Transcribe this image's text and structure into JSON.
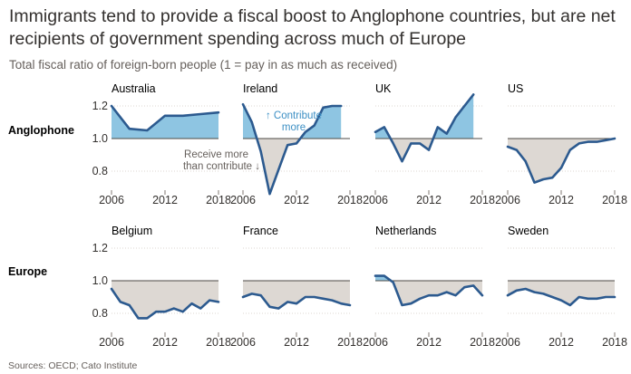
{
  "title": "Immigrants tend to provide a fiscal boost to Anglophone countries, but are net recipients of government spending across much of Europe",
  "subtitle": "Total fiscal ratio of foreign-born people (1 = pay in as much as received)",
  "source": "Sources: OECD; Cato Institute",
  "colors": {
    "line": "#2c5a8f",
    "above": "#8ec5e2",
    "below": "#ddd8d3",
    "baseline": "#4d4a46",
    "annot_blue": "#3c8fc4",
    "annot_grey": "#66605c"
  },
  "chart_data": {
    "type": "line",
    "y_ticks": [
      0.8,
      1.0,
      1.2
    ],
    "y_tick_labels": [
      "0.8",
      "1.0",
      "1.2"
    ],
    "x_ticks": [
      2006,
      2012,
      2018
    ],
    "x_tick_labels": [
      "2006",
      "2012",
      "2018"
    ],
    "baseline": 1.0,
    "rows": [
      {
        "label": "Anglophone",
        "ylim": [
          0.7,
          1.25
        ],
        "panels": [
          {
            "title": "Australia",
            "x": [
              2006,
              2008,
              2010,
              2012,
              2014,
              2016,
              2018
            ],
            "y": [
              1.2,
              1.06,
              1.05,
              1.14,
              1.14,
              1.15,
              1.16
            ]
          },
          {
            "title": "Ireland",
            "x": [
              2006,
              2007,
              2008,
              2009,
              2010,
              2011,
              2012,
              2013,
              2014,
              2015,
              2016,
              2017
            ],
            "y": [
              1.21,
              1.1,
              0.92,
              0.66,
              0.81,
              0.96,
              0.97,
              1.04,
              1.08,
              1.19,
              1.2,
              1.2
            ]
          },
          {
            "title": "UK",
            "x": [
              2006,
              2007,
              2008,
              2009,
              2010,
              2011,
              2012,
              2013,
              2014,
              2015,
              2016,
              2017
            ],
            "y": [
              1.04,
              1.07,
              0.97,
              0.86,
              0.97,
              0.97,
              0.93,
              1.07,
              1.03,
              1.13,
              1.2,
              1.27
            ]
          },
          {
            "title": "US",
            "x": [
              2006,
              2007,
              2008,
              2009,
              2010,
              2011,
              2012,
              2013,
              2014,
              2015,
              2016,
              2017,
              2018
            ],
            "y": [
              0.95,
              0.93,
              0.86,
              0.73,
              0.75,
              0.76,
              0.82,
              0.93,
              0.97,
              0.98,
              0.98,
              0.99,
              1.0
            ]
          }
        ],
        "annotations": [
          {
            "text": "↑ Contribute",
            "color": "annot_blue"
          },
          {
            "text": "more",
            "color": "annot_blue"
          },
          {
            "text": "Receive more",
            "color": "annot_grey"
          },
          {
            "text": "than contribute ↓",
            "color": "annot_grey"
          }
        ]
      },
      {
        "label": "Europe",
        "ylim": [
          0.7,
          1.25
        ],
        "panels": [
          {
            "title": "Belgium",
            "x": [
              2006,
              2007,
              2008,
              2009,
              2010,
              2011,
              2012,
              2013,
              2014,
              2015,
              2016,
              2017,
              2018
            ],
            "y": [
              0.95,
              0.87,
              0.85,
              0.77,
              0.77,
              0.81,
              0.81,
              0.83,
              0.81,
              0.86,
              0.83,
              0.88,
              0.87
            ]
          },
          {
            "title": "France",
            "x": [
              2006,
              2007,
              2008,
              2009,
              2010,
              2011,
              2012,
              2013,
              2014,
              2015,
              2016,
              2017,
              2018
            ],
            "y": [
              0.9,
              0.92,
              0.91,
              0.84,
              0.83,
              0.87,
              0.86,
              0.9,
              0.9,
              0.89,
              0.88,
              0.86,
              0.85
            ]
          },
          {
            "title": "Netherlands",
            "x": [
              2006,
              2007,
              2008,
              2009,
              2010,
              2011,
              2012,
              2013,
              2014,
              2015,
              2016,
              2017,
              2018
            ],
            "y": [
              1.03,
              1.03,
              0.99,
              0.85,
              0.86,
              0.89,
              0.91,
              0.91,
              0.93,
              0.91,
              0.96,
              0.97,
              0.91
            ]
          },
          {
            "title": "Sweden",
            "x": [
              2006,
              2007,
              2008,
              2009,
              2010,
              2011,
              2012,
              2013,
              2014,
              2015,
              2016,
              2017,
              2018
            ],
            "y": [
              0.91,
              0.94,
              0.95,
              0.93,
              0.92,
              0.9,
              0.88,
              0.85,
              0.9,
              0.89,
              0.89,
              0.9,
              0.9
            ]
          }
        ]
      }
    ]
  }
}
